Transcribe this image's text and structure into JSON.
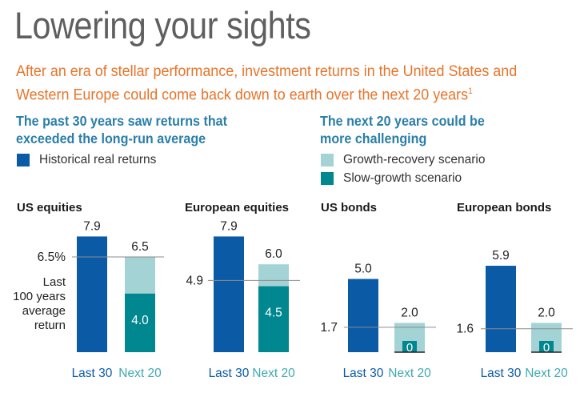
{
  "header": {
    "title": "Lowering your sights",
    "subtitle": "After an era of stellar performance, investment returns in the United States and Western Europe could come back down to earth over the next 20 years",
    "footnote_mark": "1"
  },
  "left_heading": "The past 30 years saw returns that exceeded the long-run average",
  "right_heading": "The next 20 years could be more challenging",
  "legend": {
    "historical": "Historical real returns",
    "growth": "Growth-recovery scenario",
    "slow": "Slow-growth scenario"
  },
  "colors": {
    "historical": "#0a5aa6",
    "growth": "#a3d3d4",
    "slow": "#00878f",
    "title": "#5f5f5f",
    "subtitle": "#e8742a",
    "heading": "#2a7ea8",
    "next_label": "#3fa8b3"
  },
  "average_note": [
    "Last",
    "100 years",
    "average",
    "return"
  ],
  "chart_data": {
    "type": "bar",
    "categories": [
      "Last 30",
      "Next 20"
    ],
    "series_names": [
      "Historical real returns",
      "Growth-recovery scenario",
      "Slow-growth scenario"
    ],
    "panels": [
      {
        "name": "US equities",
        "average": 6.5,
        "average_label": "6.5%",
        "last30": 7.9,
        "last30_label": "7.9",
        "growth": 6.5,
        "growth_label": "6.5",
        "slow": 4.0,
        "slow_label": "4.0"
      },
      {
        "name": "European equities",
        "average": 4.9,
        "average_label": "4.9",
        "last30": 7.9,
        "last30_label": "7.9",
        "growth": 6.0,
        "growth_label": "6.0",
        "slow": 4.5,
        "slow_label": "4.5"
      },
      {
        "name": "US bonds",
        "average": 1.7,
        "average_label": "1.7",
        "last30": 5.0,
        "last30_label": "5.0",
        "growth": 2.0,
        "growth_label": "2.0",
        "slow": 0,
        "slow_label": "0"
      },
      {
        "name": "European bonds",
        "average": 1.6,
        "average_label": "1.6",
        "last30": 5.9,
        "last30_label": "5.9",
        "growth": 2.0,
        "growth_label": "2.0",
        "slow": 0,
        "slow_label": "0"
      }
    ]
  }
}
